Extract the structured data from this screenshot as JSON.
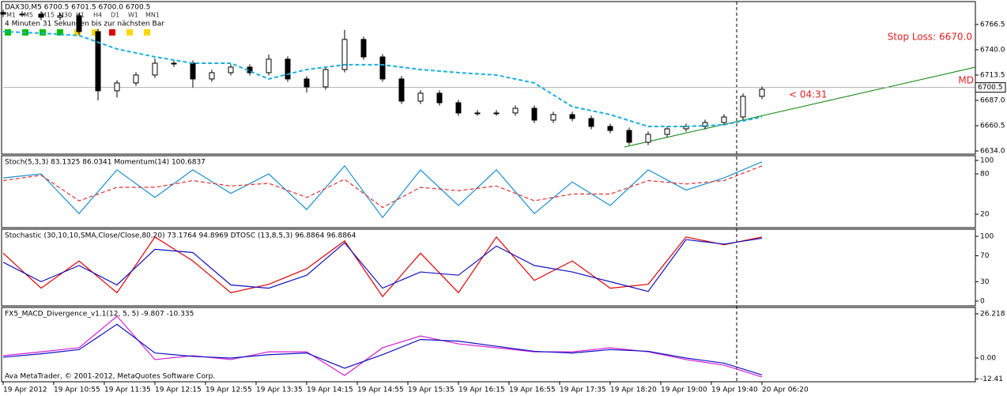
{
  "chart_data": [
    {
      "type": "candlestick",
      "title": "DAX30,M5  6700.5 6701.5 6700.0 6700.5",
      "subtitle": "4 Minuten 31 Sekunden bis zur nächsten Bar",
      "timeframes": [
        "M1",
        "M5",
        "M15",
        "M30",
        "H1",
        "H4",
        "D1",
        "W1",
        "MN1"
      ],
      "timeframe_colors": [
        "#00c000",
        "#00c000",
        "#00c000",
        "#00c000",
        "#ffd700",
        "#ffd700",
        "#e00000",
        "#ffd700",
        "#ffd700"
      ],
      "annotations": [
        "Stop Loss: 6670.0",
        "MD",
        "< 04:31"
      ],
      "last_price": 6700.5,
      "up_color": "#ffffff",
      "down_color": "#000000",
      "x": [
        0,
        3,
        6,
        9,
        12,
        15,
        18,
        21,
        24,
        27,
        30,
        33,
        36,
        39,
        42,
        45,
        48,
        51,
        54,
        57,
        60,
        63,
        66,
        69,
        72,
        75,
        78,
        81,
        84,
        87,
        90,
        93,
        96,
        99,
        102,
        105,
        108,
        111,
        114,
        117,
        120
      ],
      "open": [
        6779.0,
        6777.3,
        6777.3,
        6774.0,
        6775.6,
        6759.0,
        6697.0,
        6705.2,
        6713.5,
        6725.9,
        6725.9,
        6709.4,
        6716.0,
        6721.8,
        6716.0,
        6730.1,
        6709.4,
        6701.1,
        6719.3,
        6750.8,
        6732.5,
        6709.4,
        6686.2,
        6694.5,
        6684.5,
        6673.8,
        6673.8,
        6673.8,
        6678.7,
        6666.3,
        6672.1,
        6668.0,
        6659.7,
        6655.5,
        6643.1,
        6651.4,
        6657.2,
        6659.7,
        6663.8,
        6669.6,
        6691.2
      ],
      "high": [
        6782.0,
        6780.3,
        6780.3,
        6778.6,
        6778.6,
        6762.0,
        6708.2,
        6716.5,
        6730.9,
        6729.9,
        6728.9,
        6719.0,
        6724.8,
        6724.8,
        6735.1,
        6733.1,
        6712.4,
        6722.3,
        6760.8,
        6753.8,
        6735.5,
        6712.4,
        6697.5,
        6697.5,
        6687.5,
        6676.8,
        6676.8,
        6681.7,
        6681.7,
        6675.1,
        6675.1,
        6671.0,
        6662.7,
        6658.5,
        6654.4,
        6660.2,
        6662.7,
        6666.8,
        6672.6,
        6694.2,
        6701.6
      ],
      "low": [
        6774.3,
        6774.3,
        6771.0,
        6771.0,
        6756.0,
        6687.0,
        6690.0,
        6702.2,
        6710.5,
        6721.9,
        6700.4,
        6706.4,
        6713.0,
        6713.0,
        6713.0,
        6706.4,
        6695.1,
        6698.1,
        6716.3,
        6729.5,
        6706.4,
        6683.2,
        6683.2,
        6681.5,
        6670.8,
        6670.8,
        6670.8,
        6670.8,
        6663.3,
        6663.3,
        6665.0,
        6656.7,
        6652.5,
        6640.1,
        6640.1,
        6648.4,
        6654.2,
        6656.7,
        6660.8,
        6666.6,
        6688.2
      ],
      "close": [
        6777.3,
        6777.3,
        6774.0,
        6775.6,
        6759.0,
        6697.0,
        6705.2,
        6713.5,
        6725.9,
        6725.9,
        6709.4,
        6716.0,
        6721.8,
        6716.0,
        6730.1,
        6709.4,
        6701.1,
        6719.3,
        6750.8,
        6732.5,
        6709.4,
        6686.2,
        6694.5,
        6684.5,
        6673.8,
        6673.8,
        6673.8,
        6678.7,
        6666.3,
        6672.1,
        6668.0,
        6659.7,
        6655.5,
        6643.1,
        6651.4,
        6657.2,
        6659.7,
        6663.8,
        6669.6,
        6691.2,
        6698.6
      ],
      "overlay": {
        "color": "#1ab0e0",
        "dash": true,
        "x": [
          0,
          6,
          12,
          18,
          24,
          30,
          36,
          42,
          48,
          54,
          60,
          66,
          72,
          78,
          84,
          90,
          96,
          102,
          108,
          114,
          120
        ],
        "values": [
          6759.0,
          6757.3,
          6754.9,
          6740.8,
          6732.6,
          6725.9,
          6725.9,
          6709.4,
          6719.3,
          6724.3,
          6724.3,
          6719.3,
          6716.0,
          6713.5,
          6705.2,
          6680.4,
          6672.1,
          6659.7,
          6659.7,
          6661.4,
          6669.6
        ]
      },
      "ylim": [
        6630.7,
        6789.6
      ],
      "yticks": [
        6766.5,
        {
          "value": 6740,
          "label": "6740.0"
        },
        6713.5,
        {
          "value": 6687,
          "label": "6687.0"
        },
        6660.5,
        {
          "value": 6634,
          "label": "6634.0"
        }
      ]
    },
    {
      "type": "line",
      "title": "Stoch(5,3,3) 83.1325 86.0341  Momentum(14) 100.6837",
      "x": [
        0,
        6,
        12,
        18,
        24,
        30,
        36,
        42,
        48,
        54,
        60,
        66,
        72,
        78,
        84,
        90,
        96,
        102,
        108,
        114,
        120
      ],
      "series": [
        {
          "color": "#1a8fd0",
          "dash": false,
          "values": [
            74,
            80,
            21,
            86,
            45,
            86,
            51,
            80,
            27,
            92,
            15,
            86,
            33,
            86,
            21,
            68,
            33,
            86,
            56,
            74,
            98
          ]
        },
        {
          "color": "#e03030",
          "dash": true,
          "values": [
            70,
            78,
            40,
            60,
            60,
            70,
            62,
            66,
            45,
            72,
            30,
            60,
            55,
            62,
            40,
            50,
            50,
            70,
            65,
            70,
            92
          ]
        }
      ],
      "ylim": [
        2.4,
        104.7
      ],
      "yticks": [
        100,
        80,
        20
      ]
    },
    {
      "type": "line",
      "title": "Stochastic (30,10,10,SMA,Close/Close,80,20) 73.1764 94.8969  DTOSC (13,8,5,3) 96.8864 96.8864",
      "x": [
        0,
        6,
        12,
        18,
        24,
        30,
        36,
        42,
        48,
        54,
        60,
        66,
        72,
        78,
        84,
        90,
        96,
        102,
        108,
        114,
        120
      ],
      "series": [
        {
          "color": "#e00000",
          "dash": false,
          "values": [
            74,
            20,
            62,
            13,
            99,
            62,
            13,
            26,
            50,
            93,
            7,
            74,
            13,
            99,
            32,
            62,
            20,
            26,
            99,
            87,
            99
          ]
        },
        {
          "color": "#1010c0",
          "dash": false,
          "values": [
            60,
            30,
            55,
            25,
            80,
            75,
            25,
            20,
            40,
            90,
            20,
            45,
            40,
            85,
            55,
            45,
            30,
            15,
            95,
            88,
            97
          ]
        }
      ],
      "ylim": [
        -4.9,
        107.3
      ],
      "yticks": [
        100,
        70,
        30,
        0
      ]
    },
    {
      "type": "line",
      "title": "FX5_MACD_Divergence_v1.1(12, 5, 5) -9.807 -10.335",
      "annotation": "Ava MetaTrader, © 2001-2012, MetaQuotes Software Corp.",
      "x": [
        0,
        6,
        12,
        18,
        24,
        30,
        36,
        42,
        48,
        54,
        60,
        66,
        72,
        78,
        84,
        90,
        96,
        102,
        108,
        114,
        120
      ],
      "series": [
        {
          "color": "#d020d0",
          "dash": false,
          "values": [
            1.4,
            3.7,
            6.1,
            24.8,
            -0.9,
            1.4,
            -0.9,
            3.7,
            3.7,
            -10.3,
            6.1,
            13.1,
            8.4,
            6.1,
            3.7,
            3.7,
            6.1,
            3.7,
            -0.9,
            -4.2,
            -11.2
          ]
        },
        {
          "color": "#1010c0",
          "dash": false,
          "values": [
            0.5,
            2.5,
            5,
            20,
            3,
            1,
            0,
            2,
            3,
            -6,
            2,
            11,
            10,
            7,
            4,
            3,
            5,
            4,
            0,
            -3,
            -10
          ]
        }
      ],
      "ylim": [
        -13.58,
        28.56
      ],
      "yticks": [
        26.218,
        {
          "value": 0,
          "label": "0.00"
        },
        -12.41
      ],
      "xticks": [
        {
          "value": 0,
          "label": "19 Apr 2012"
        },
        {
          "value": 8,
          "label": "19 Apr 10:55"
        },
        {
          "value": 16,
          "label": "19 Apr 11:35"
        },
        {
          "value": 24,
          "label": "19 Apr 12:15"
        },
        {
          "value": 32,
          "label": "19 Apr 12:55"
        },
        {
          "value": 40,
          "label": "19 Apr 13:35"
        },
        {
          "value": 48,
          "label": "19 Apr 14:15"
        },
        {
          "value": 56,
          "label": "19 Apr 14:55"
        },
        {
          "value": 64,
          "label": "19 Apr 15:35"
        },
        {
          "value": 72,
          "label": "19 Apr 16:15"
        },
        {
          "value": 80,
          "label": "19 Apr 16:55"
        },
        {
          "value": 88,
          "label": "19 Apr 17:35"
        },
        {
          "value": 96,
          "label": "19 Apr 18:20"
        },
        {
          "value": 104,
          "label": "19 Apr 19:00"
        },
        {
          "value": 112,
          "label": "19 Apr 19:40"
        },
        {
          "value": 120,
          "label": "20 Apr 06:20"
        }
      ]
    }
  ]
}
